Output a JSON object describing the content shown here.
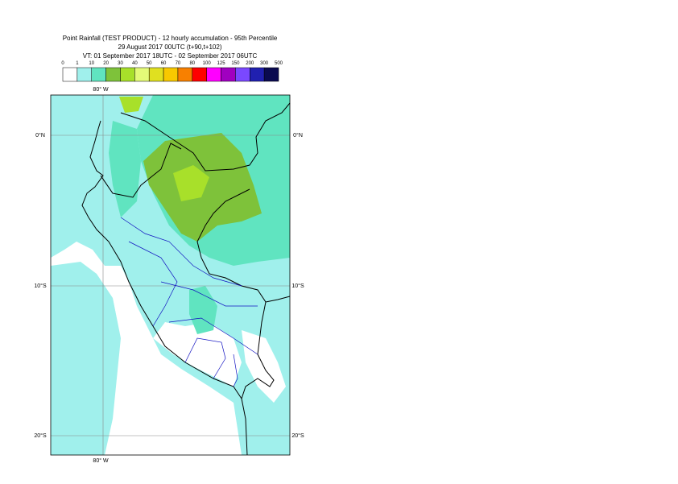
{
  "header": {
    "title": "Point Rainfall (TEST PRODUCT) - 12 hourly accumulation - 95th Percentile",
    "base_time": "29 August 2017 00UTC (t+90,t+102)",
    "valid_time": "VT: 01 September 2017 18UTC - 02 September 2017 06UTC"
  },
  "legend": {
    "labels": [
      0,
      1,
      10,
      20,
      30,
      40,
      50,
      60,
      70,
      80,
      100,
      125,
      150,
      200,
      300,
      500
    ],
    "colors": [
      "#ffffff",
      "#a0f0ec",
      "#60e4c0",
      "#7ec23a",
      "#a8e02a",
      "#e4fa78",
      "#e0e020",
      "#f8c800",
      "#f88000",
      "#ff0000",
      "#ff00ff",
      "#a000c0",
      "#7a48ff",
      "#2020b0",
      "#0a0a50"
    ]
  },
  "map": {
    "lon_label": "80° W",
    "lat_labels": [
      "0°N",
      "10°S",
      "20°S"
    ]
  }
}
